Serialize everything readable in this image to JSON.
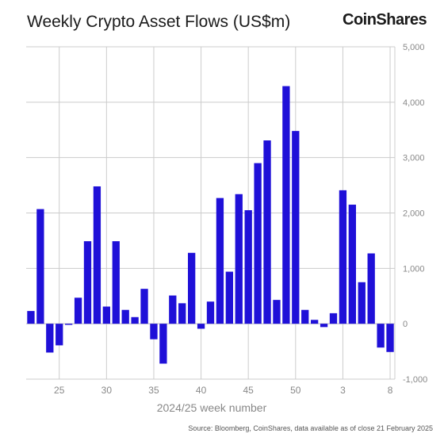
{
  "header": {
    "title": "Weekly Crypto Asset Flows (US$m)",
    "logo_text": "CoinShares"
  },
  "footer": {
    "source": "Source: Bloomberg, CoinShares, data available as of close 21 February 2025"
  },
  "colors": {
    "bar": "#1f10d8",
    "grid": "#cccccc",
    "axis_text": "#888888"
  },
  "chart_data": {
    "type": "bar",
    "title": "Weekly Crypto Asset Flows (US$m)",
    "xlabel": "2024/25 week number",
    "ylabel": "",
    "ylim": [
      -1000,
      5000
    ],
    "yticks": [
      -1000,
      0,
      1000,
      2000,
      3000,
      4000,
      5000
    ],
    "ytick_labels": [
      "-1,000",
      "0",
      "1,000",
      "2,000",
      "3,000",
      "4,000",
      "5,000"
    ],
    "grid": true,
    "categories": [
      "22",
      "23",
      "24",
      "25",
      "26",
      "27",
      "28",
      "29",
      "30",
      "31",
      "32",
      "33",
      "34",
      "35",
      "36",
      "37",
      "38",
      "39",
      "40",
      "41",
      "42",
      "43",
      "44",
      "45",
      "46",
      "47",
      "48",
      "49",
      "50",
      "51",
      "52",
      "1",
      "2",
      "3",
      "4",
      "5",
      "6",
      "7",
      "8"
    ],
    "values": [
      230,
      2070,
      -520,
      -390,
      -20,
      470,
      1490,
      2480,
      310,
      1490,
      250,
      120,
      630,
      -280,
      -720,
      510,
      370,
      1280,
      -90,
      400,
      2270,
      940,
      2340,
      2050,
      2900,
      3310,
      430,
      4290,
      3480,
      250,
      70,
      -60,
      190,
      2410,
      2150,
      750,
      1270,
      -430,
      -510
    ],
    "xtick_labels": [
      {
        "category": "25",
        "label": "25"
      },
      {
        "category": "30",
        "label": "30"
      },
      {
        "category": "35",
        "label": "35"
      },
      {
        "category": "40",
        "label": "40"
      },
      {
        "category": "45",
        "label": "45"
      },
      {
        "category": "50",
        "label": "50"
      },
      {
        "category": "3",
        "label": "3"
      },
      {
        "category": "8",
        "label": "8"
      }
    ]
  }
}
